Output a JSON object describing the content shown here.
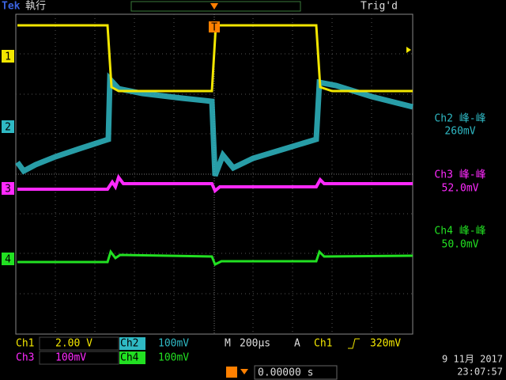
{
  "header": {
    "brand": "Tek",
    "state": "執行",
    "trigger_status": "Trig'd"
  },
  "markers": {
    "ch1": "1",
    "ch2": "2",
    "ch3": "3",
    "ch4": "4",
    "trigger": "T"
  },
  "measurements": [
    {
      "label": "Ch2 峰-峰",
      "value": "260mV"
    },
    {
      "label": "Ch3 峰-峰",
      "value": "52.0mV"
    },
    {
      "label": "Ch4 峰-峰",
      "value": "50.0mV"
    }
  ],
  "footer": {
    "ch1": {
      "name": "Ch1",
      "scale": "2.00 V"
    },
    "ch2": {
      "name": "Ch2",
      "scale": "100mV"
    },
    "timebase": {
      "label": "M",
      "value": "200µs"
    },
    "trigger": {
      "label": "A",
      "source": "Ch1",
      "level": "320mV"
    },
    "ch3": {
      "name": "Ch3",
      "scale": "100mV"
    },
    "ch4": {
      "name": "Ch4",
      "scale": "100mV"
    },
    "position": "0.00000 s",
    "date": "9 11月 2017",
    "time": "23:07:57"
  }
}
